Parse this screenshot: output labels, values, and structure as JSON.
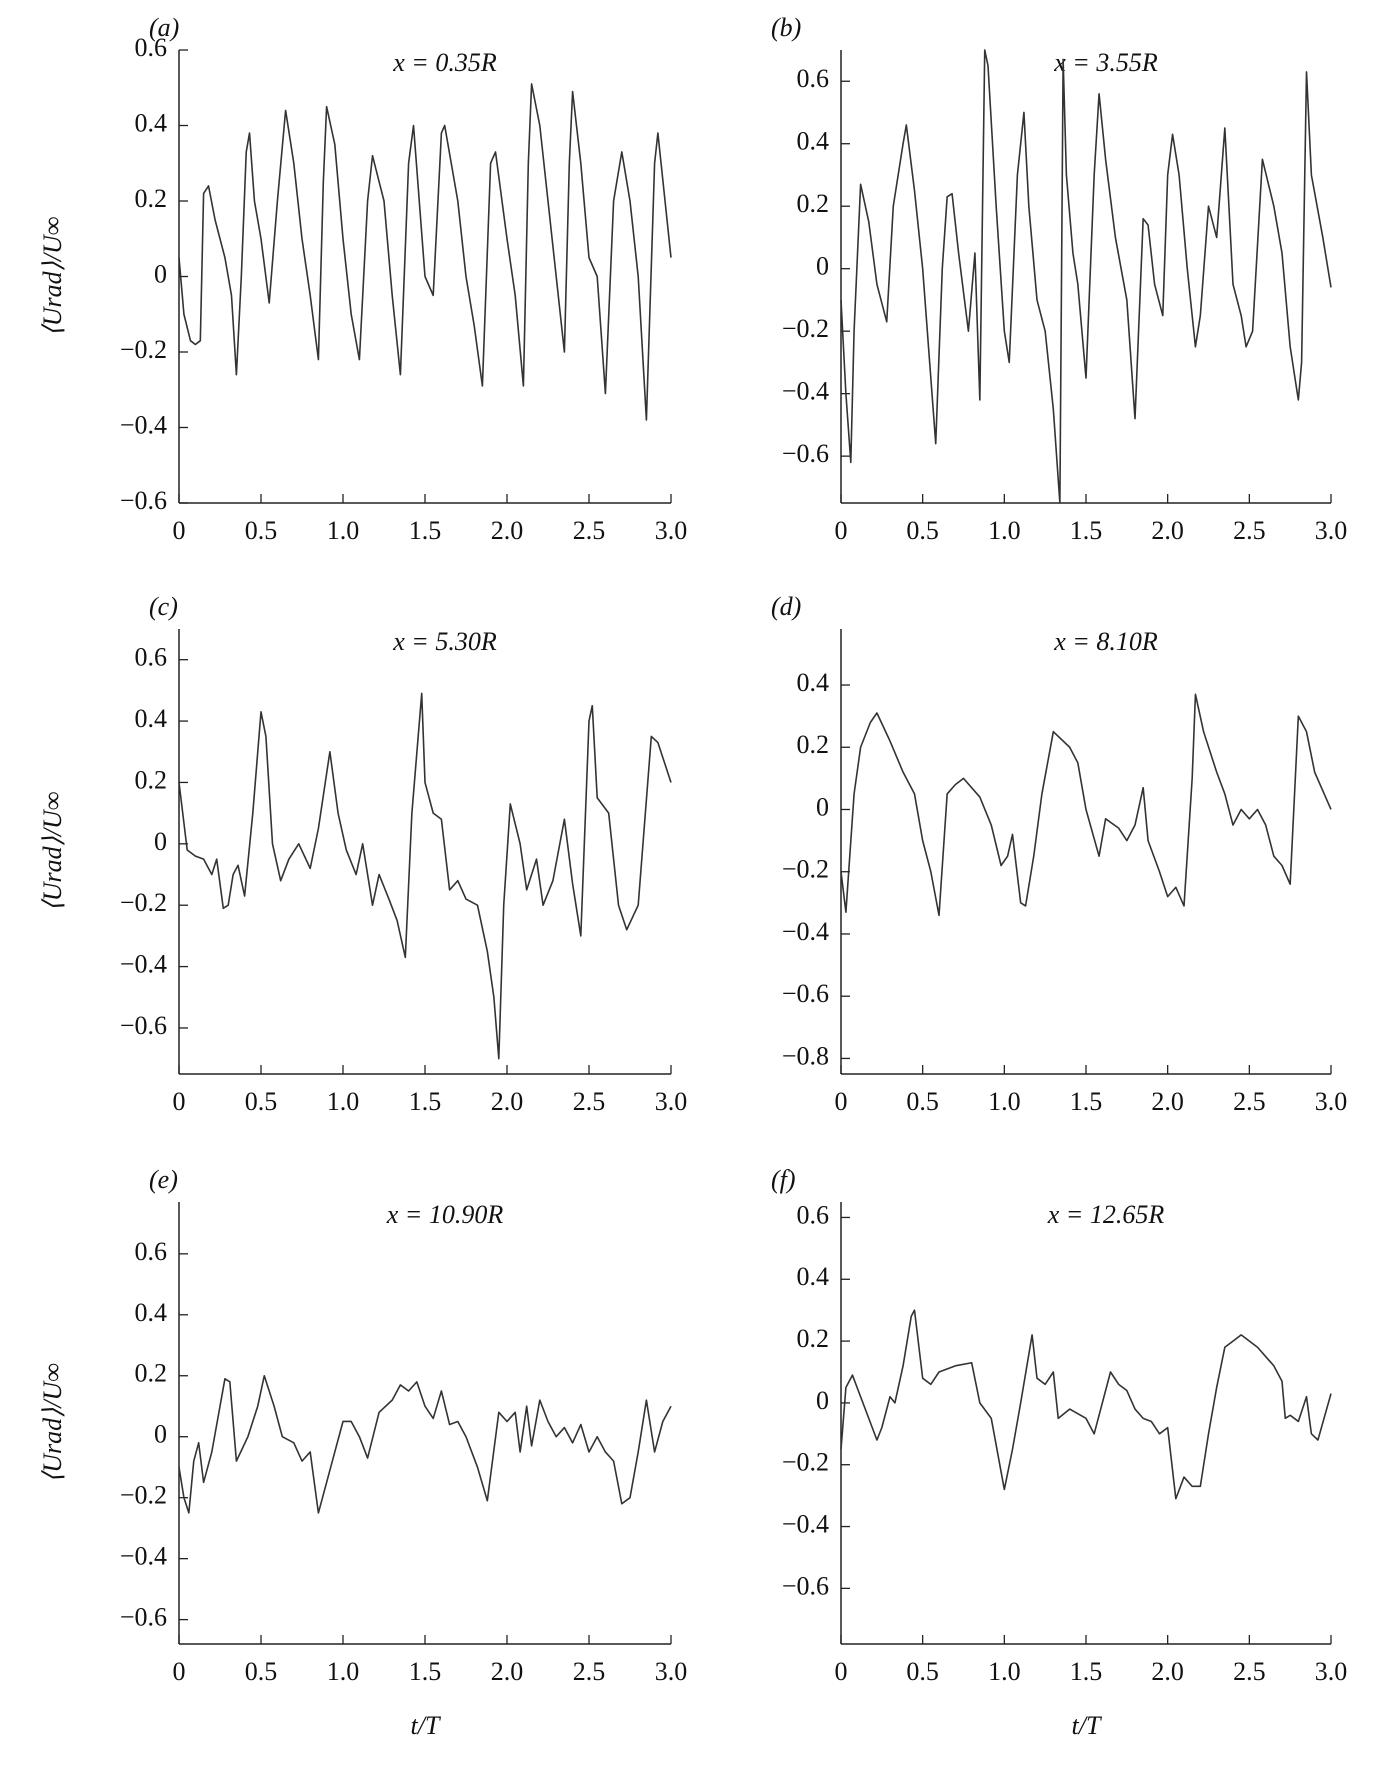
{
  "chart_data": [
    {
      "type": "line",
      "panel": "(a)",
      "annotation": "x = 0.35R",
      "ylabel": "⟨Urad⟩/U∞",
      "color": "#333333",
      "xlim": [
        0,
        3
      ],
      "ylim": [
        -0.6,
        0.6
      ],
      "xticks": [
        0,
        0.5,
        {
          "value": 1,
          "label": "1.0"
        },
        1.5,
        {
          "value": 2,
          "label": "2.0"
        },
        2.5,
        {
          "value": 3,
          "label": "3.0"
        }
      ],
      "yticks": [
        {
          "value": -0.6,
          "label": "−0.6"
        },
        {
          "value": -0.4,
          "label": "−0.4"
        },
        {
          "value": -0.2,
          "label": "−0.2"
        },
        0,
        0.2,
        0.4,
        0.6
      ],
      "x": [
        0,
        0.03,
        0.07,
        0.1,
        0.13,
        0.15,
        0.18,
        0.22,
        0.28,
        0.32,
        0.35,
        0.38,
        0.41,
        0.43,
        0.46,
        0.5,
        0.55,
        0.6,
        0.65,
        0.7,
        0.75,
        0.8,
        0.85,
        0.88,
        0.9,
        0.95,
        1.0,
        1.05,
        1.1,
        1.15,
        1.18,
        1.25,
        1.3,
        1.35,
        1.4,
        1.43,
        1.5,
        1.55,
        1.6,
        1.62,
        1.7,
        1.75,
        1.8,
        1.85,
        1.9,
        1.93,
        2.0,
        2.05,
        2.1,
        2.13,
        2.15,
        2.2,
        2.25,
        2.3,
        2.35,
        2.38,
        2.4,
        2.45,
        2.5,
        2.55,
        2.6,
        2.65,
        2.7,
        2.75,
        2.8,
        2.85,
        2.9,
        2.92,
        3.0
      ],
      "values": [
        0.05,
        -0.1,
        -0.17,
        -0.18,
        -0.17,
        0.22,
        0.24,
        0.15,
        0.05,
        -0.05,
        -0.26,
        0.0,
        0.33,
        0.38,
        0.2,
        0.1,
        -0.07,
        0.2,
        0.44,
        0.3,
        0.1,
        -0.05,
        -0.22,
        0.25,
        0.45,
        0.35,
        0.1,
        -0.1,
        -0.22,
        0.2,
        0.32,
        0.2,
        -0.05,
        -0.26,
        0.3,
        0.4,
        0.0,
        -0.05,
        0.38,
        0.4,
        0.2,
        0.0,
        -0.13,
        -0.29,
        0.3,
        0.33,
        0.1,
        -0.05,
        -0.29,
        0.3,
        0.51,
        0.4,
        0.2,
        0.0,
        -0.2,
        0.3,
        0.49,
        0.3,
        0.05,
        0.0,
        -0.31,
        0.2,
        0.33,
        0.2,
        0.0,
        -0.38,
        0.3,
        0.38,
        0.05
      ]
    },
    {
      "type": "line",
      "panel": "(b)",
      "annotation": "x = 3.55R",
      "color": "#333333",
      "xlim": [
        0,
        3
      ],
      "ylim": [
        -0.75,
        0.7
      ],
      "xticks": [
        0,
        0.5,
        {
          "value": 1,
          "label": "1.0"
        },
        1.5,
        {
          "value": 2,
          "label": "2.0"
        },
        2.5,
        {
          "value": 3,
          "label": "3.0"
        }
      ],
      "yticks": [
        {
          "value": -0.6,
          "label": "−0.6"
        },
        {
          "value": -0.4,
          "label": "−0.4"
        },
        {
          "value": -0.2,
          "label": "−0.2"
        },
        0,
        0.2,
        0.4,
        0.6
      ],
      "x": [
        0,
        0.03,
        0.06,
        0.08,
        0.12,
        0.17,
        0.22,
        0.28,
        0.32,
        0.38,
        0.4,
        0.45,
        0.5,
        0.55,
        0.58,
        0.62,
        0.65,
        0.68,
        0.72,
        0.78,
        0.82,
        0.85,
        0.88,
        0.9,
        0.95,
        1.0,
        1.03,
        1.08,
        1.12,
        1.15,
        1.2,
        1.25,
        1.3,
        1.34,
        1.36,
        1.38,
        1.42,
        1.45,
        1.5,
        1.55,
        1.58,
        1.62,
        1.68,
        1.75,
        1.8,
        1.85,
        1.88,
        1.92,
        1.97,
        2.0,
        2.03,
        2.07,
        2.12,
        2.17,
        2.2,
        2.25,
        2.3,
        2.35,
        2.4,
        2.45,
        2.48,
        2.52,
        2.58,
        2.65,
        2.7,
        2.75,
        2.8,
        2.82,
        2.85,
        2.88,
        2.95,
        3.0
      ],
      "values": [
        -0.1,
        -0.4,
        -0.62,
        -0.2,
        0.27,
        0.15,
        -0.05,
        -0.17,
        0.2,
        0.4,
        0.46,
        0.25,
        0.0,
        -0.35,
        -0.56,
        0.0,
        0.23,
        0.24,
        0.05,
        -0.2,
        0.05,
        -0.42,
        0.7,
        0.65,
        0.2,
        -0.2,
        -0.3,
        0.3,
        0.5,
        0.2,
        -0.1,
        -0.2,
        -0.45,
        -0.75,
        0.67,
        0.3,
        0.05,
        -0.05,
        -0.35,
        0.3,
        0.56,
        0.35,
        0.1,
        -0.1,
        -0.48,
        0.16,
        0.14,
        -0.05,
        -0.15,
        0.3,
        0.43,
        0.3,
        0.0,
        -0.25,
        -0.15,
        0.2,
        0.1,
        0.45,
        -0.05,
        -0.15,
        -0.25,
        -0.2,
        0.35,
        0.2,
        0.05,
        -0.25,
        -0.42,
        -0.3,
        0.63,
        0.3,
        0.1,
        -0.06
      ]
    },
    {
      "type": "line",
      "panel": "(c)",
      "annotation": "x = 5.30R",
      "ylabel": "⟨Urad⟩/U∞",
      "color": "#333333",
      "xlim": [
        0,
        3
      ],
      "ylim": [
        -0.75,
        0.7
      ],
      "xticks": [
        0,
        0.5,
        {
          "value": 1,
          "label": "1.0"
        },
        1.5,
        {
          "value": 2,
          "label": "2.0"
        },
        2.5,
        {
          "value": 3,
          "label": "3.0"
        }
      ],
      "yticks": [
        {
          "value": -0.6,
          "label": "−0.6"
        },
        {
          "value": -0.4,
          "label": "−0.4"
        },
        {
          "value": -0.2,
          "label": "−0.2"
        },
        0,
        0.2,
        0.4,
        0.6
      ],
      "x": [
        0,
        0.05,
        0.1,
        0.15,
        0.2,
        0.23,
        0.27,
        0.3,
        0.33,
        0.36,
        0.4,
        0.45,
        0.5,
        0.53,
        0.57,
        0.62,
        0.67,
        0.73,
        0.8,
        0.85,
        0.92,
        0.97,
        1.02,
        1.08,
        1.12,
        1.18,
        1.22,
        1.28,
        1.33,
        1.38,
        1.42,
        1.48,
        1.5,
        1.55,
        1.6,
        1.65,
        1.7,
        1.75,
        1.82,
        1.88,
        1.92,
        1.95,
        1.98,
        2.02,
        2.08,
        2.12,
        2.18,
        2.22,
        2.28,
        2.35,
        2.4,
        2.45,
        2.5,
        2.52,
        2.55,
        2.62,
        2.68,
        2.73,
        2.8,
        2.88,
        2.92,
        3.0
      ],
      "values": [
        0.2,
        -0.02,
        -0.04,
        -0.05,
        -0.1,
        -0.05,
        -0.21,
        -0.2,
        -0.1,
        -0.07,
        -0.17,
        0.1,
        0.43,
        0.35,
        0.0,
        -0.12,
        -0.05,
        0.0,
        -0.08,
        0.05,
        0.3,
        0.1,
        -0.02,
        -0.1,
        0.0,
        -0.2,
        -0.1,
        -0.18,
        -0.25,
        -0.37,
        0.1,
        0.49,
        0.2,
        0.1,
        0.08,
        -0.15,
        -0.12,
        -0.18,
        -0.2,
        -0.35,
        -0.5,
        -0.7,
        -0.2,
        0.13,
        0.0,
        -0.15,
        -0.05,
        -0.2,
        -0.12,
        0.08,
        -0.13,
        -0.3,
        0.4,
        0.45,
        0.15,
        0.1,
        -0.2,
        -0.28,
        -0.2,
        0.35,
        0.33,
        0.2
      ]
    },
    {
      "type": "line",
      "panel": "(d)",
      "annotation": "x = 8.10R",
      "color": "#333333",
      "xlim": [
        0,
        3
      ],
      "ylim": [
        -0.85,
        0.58
      ],
      "xticks": [
        0,
        0.5,
        {
          "value": 1,
          "label": "1.0"
        },
        1.5,
        {
          "value": 2,
          "label": "2.0"
        },
        2.5,
        {
          "value": 3,
          "label": "3.0"
        }
      ],
      "yticks": [
        {
          "value": -0.8,
          "label": "−0.8"
        },
        {
          "value": -0.6,
          "label": "−0.6"
        },
        {
          "value": -0.4,
          "label": "−0.4"
        },
        {
          "value": -0.2,
          "label": "−0.2"
        },
        0,
        0.2,
        0.4
      ],
      "x": [
        0,
        0.03,
        0.08,
        0.12,
        0.18,
        0.22,
        0.3,
        0.38,
        0.45,
        0.5,
        0.55,
        0.6,
        0.65,
        0.7,
        0.75,
        0.85,
        0.92,
        0.98,
        1.02,
        1.05,
        1.1,
        1.13,
        1.18,
        1.23,
        1.3,
        1.4,
        1.45,
        1.5,
        1.58,
        1.62,
        1.7,
        1.75,
        1.8,
        1.85,
        1.88,
        1.95,
        2.0,
        2.05,
        2.1,
        2.15,
        2.17,
        2.22,
        2.3,
        2.35,
        2.4,
        2.45,
        2.5,
        2.55,
        2.6,
        2.65,
        2.7,
        2.75,
        2.8,
        2.85,
        2.9,
        3.0
      ],
      "values": [
        -0.2,
        -0.33,
        0.05,
        0.2,
        0.28,
        0.31,
        0.22,
        0.12,
        0.05,
        -0.1,
        -0.2,
        -0.34,
        0.05,
        0.08,
        0.1,
        0.04,
        -0.05,
        -0.18,
        -0.15,
        -0.08,
        -0.3,
        -0.31,
        -0.15,
        0.05,
        0.25,
        0.2,
        0.15,
        0.0,
        -0.15,
        -0.03,
        -0.06,
        -0.1,
        -0.05,
        0.07,
        -0.1,
        -0.2,
        -0.28,
        -0.25,
        -0.31,
        0.1,
        0.37,
        0.25,
        0.12,
        0.05,
        -0.05,
        0.0,
        -0.03,
        0.0,
        -0.05,
        -0.15,
        -0.18,
        -0.24,
        0.3,
        0.25,
        0.12,
        0.0
      ]
    },
    {
      "type": "line",
      "panel": "(e)",
      "annotation": "x = 10.90R",
      "ylabel": "⟨Urad⟩/U∞",
      "xlabel": "t/T",
      "color": "#333333",
      "xlim": [
        0,
        3
      ],
      "ylim": [
        -0.68,
        0.77
      ],
      "xticks": [
        0,
        0.5,
        {
          "value": 1,
          "label": "1.0"
        },
        1.5,
        {
          "value": 2,
          "label": "2.0"
        },
        2.5,
        {
          "value": 3,
          "label": "3.0"
        }
      ],
      "yticks": [
        {
          "value": -0.6,
          "label": "−0.6"
        },
        {
          "value": -0.4,
          "label": "−0.4"
        },
        {
          "value": -0.2,
          "label": "−0.2"
        },
        0,
        0.2,
        0.4,
        0.6
      ],
      "x": [
        0,
        0.03,
        0.06,
        0.09,
        0.12,
        0.15,
        0.2,
        0.25,
        0.28,
        0.31,
        0.35,
        0.42,
        0.48,
        0.52,
        0.58,
        0.63,
        0.7,
        0.75,
        0.8,
        0.85,
        0.9,
        0.95,
        1.0,
        1.05,
        1.1,
        1.15,
        1.22,
        1.3,
        1.35,
        1.4,
        1.45,
        1.5,
        1.55,
        1.6,
        1.65,
        1.7,
        1.75,
        1.82,
        1.88,
        1.95,
        2.0,
        2.05,
        2.08,
        2.12,
        2.15,
        2.2,
        2.25,
        2.3,
        2.35,
        2.4,
        2.45,
        2.5,
        2.55,
        2.6,
        2.65,
        2.7,
        2.75,
        2.8,
        2.85,
        2.9,
        2.95,
        3.0
      ],
      "values": [
        -0.1,
        -0.2,
        -0.25,
        -0.08,
        -0.02,
        -0.15,
        -0.05,
        0.1,
        0.19,
        0.18,
        -0.08,
        0.0,
        0.1,
        0.2,
        0.1,
        0.0,
        -0.02,
        -0.08,
        -0.05,
        -0.25,
        -0.15,
        -0.05,
        0.05,
        0.05,
        0.0,
        -0.07,
        0.08,
        0.12,
        0.17,
        0.15,
        0.18,
        0.1,
        0.06,
        0.15,
        0.04,
        0.05,
        0.0,
        -0.1,
        -0.21,
        0.08,
        0.05,
        0.08,
        -0.05,
        0.1,
        -0.03,
        0.12,
        0.05,
        0.0,
        0.03,
        -0.02,
        0.04,
        -0.05,
        0.0,
        -0.05,
        -0.08,
        -0.22,
        -0.2,
        -0.05,
        0.12,
        -0.05,
        0.05,
        0.1
      ]
    },
    {
      "type": "line",
      "panel": "(f)",
      "annotation": "x = 12.65R",
      "xlabel": "t/T",
      "color": "#333333",
      "xlim": [
        0,
        3
      ],
      "ylim": [
        -0.78,
        0.65
      ],
      "xticks": [
        0,
        0.5,
        {
          "value": 1,
          "label": "1.0"
        },
        1.5,
        {
          "value": 2,
          "label": "2.0"
        },
        2.5,
        {
          "value": 3,
          "label": "3.0"
        }
      ],
      "yticks": [
        {
          "value": -0.6,
          "label": "−0.6"
        },
        {
          "value": -0.4,
          "label": "−0.4"
        },
        {
          "value": -0.2,
          "label": "−0.2"
        },
        0,
        0.2,
        0.4,
        0.6
      ],
      "x": [
        0,
        0.03,
        0.07,
        0.12,
        0.17,
        0.22,
        0.25,
        0.3,
        0.33,
        0.38,
        0.43,
        0.45,
        0.5,
        0.55,
        0.6,
        0.7,
        0.8,
        0.85,
        0.92,
        1.0,
        1.05,
        1.1,
        1.17,
        1.2,
        1.25,
        1.3,
        1.33,
        1.4,
        1.5,
        1.55,
        1.6,
        1.65,
        1.7,
        1.75,
        1.8,
        1.85,
        1.9,
        1.95,
        2.0,
        2.05,
        2.1,
        2.15,
        2.2,
        2.25,
        2.3,
        2.35,
        2.4,
        2.45,
        2.55,
        2.65,
        2.7,
        2.72,
        2.75,
        2.8,
        2.85,
        2.88,
        2.92,
        3.0
      ],
      "values": [
        -0.15,
        0.05,
        0.09,
        0.02,
        -0.05,
        -0.12,
        -0.08,
        0.02,
        0.0,
        0.12,
        0.28,
        0.3,
        0.08,
        0.06,
        0.1,
        0.12,
        0.13,
        0.0,
        -0.05,
        -0.28,
        -0.15,
        0.0,
        0.22,
        0.08,
        0.06,
        0.1,
        -0.05,
        -0.02,
        -0.05,
        -0.1,
        0.0,
        0.1,
        0.06,
        0.04,
        -0.02,
        -0.05,
        -0.06,
        -0.1,
        -0.08,
        -0.31,
        -0.24,
        -0.27,
        -0.27,
        -0.1,
        0.05,
        0.18,
        0.2,
        0.22,
        0.18,
        0.12,
        0.07,
        -0.05,
        -0.04,
        -0.06,
        0.02,
        -0.1,
        -0.12,
        0.03
      ]
    }
  ]
}
